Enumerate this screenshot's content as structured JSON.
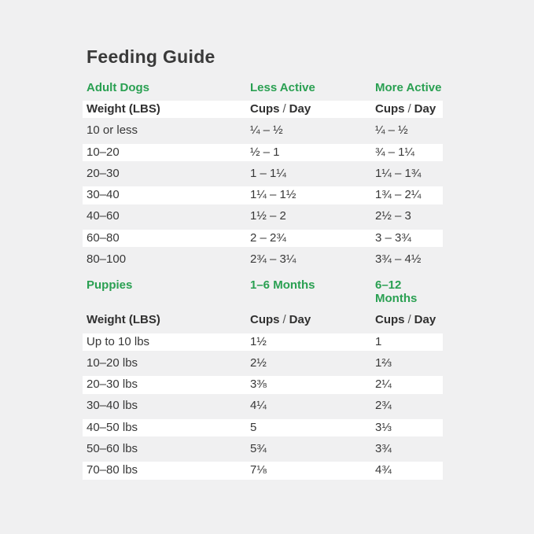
{
  "page": {
    "title": "Feeding Guide"
  },
  "colors": {
    "accent_green": "#2aa052",
    "background": "#f0f0f1",
    "row_white": "#ffffff",
    "text_dark": "#383838"
  },
  "sections": [
    {
      "name": "Adult Dogs",
      "col2": "Less Active",
      "col3": "More Active",
      "header": {
        "col1": "Weight (LBS)",
        "col2": {
          "a": "Cups",
          "sep": "/",
          "b": "Day"
        },
        "col3": {
          "a": "Cups",
          "sep": "/",
          "b": "Day"
        }
      },
      "rows": [
        {
          "w": "10 or less",
          "c2": "¼ – ½",
          "c3": "¼ – ½"
        },
        {
          "w": "10–20",
          "c2": "½ – 1",
          "c3": "¾ – 1¼"
        },
        {
          "w": "20–30",
          "c2": "1 – 1¼",
          "c3": "1¼ – 1¾"
        },
        {
          "w": "30–40",
          "c2": "1¼ – 1½",
          "c3": "1¾ – 2¼"
        },
        {
          "w": "40–60",
          "c2": "1½ – 2",
          "c3": "2½ – 3"
        },
        {
          "w": "60–80",
          "c2": "2 – 2¾",
          "c3": "3 – 3¾"
        },
        {
          "w": "80–100",
          "c2": "2¾ – 3¼",
          "c3": "3¾ – 4½"
        }
      ]
    },
    {
      "name": "Puppies",
      "col2": "1–6 Months",
      "col3": "6–12 Months",
      "header": {
        "col1": "Weight (LBS)",
        "col2": {
          "a": "Cups",
          "sep": "/",
          "b": "Day"
        },
        "col3": {
          "a": "Cups",
          "sep": "/",
          "b": "Day"
        }
      },
      "rows": [
        {
          "w": "Up to 10 lbs",
          "c2": "1½",
          "c3": "1"
        },
        {
          "w": "10–20 lbs",
          "c2": "2½",
          "c3": "1⅔"
        },
        {
          "w": "20–30 lbs",
          "c2": "3⅜",
          "c3": "2¼"
        },
        {
          "w": "30–40 lbs",
          "c2": "4¼",
          "c3": "2¾"
        },
        {
          "w": "40–50 lbs",
          "c2": "5",
          "c3": "3⅓"
        },
        {
          "w": "50–60 lbs",
          "c2": "5¾",
          "c3": "3¾"
        },
        {
          "w": "70–80 lbs",
          "c2": "7⅛",
          "c3": "4¾"
        }
      ]
    }
  ]
}
